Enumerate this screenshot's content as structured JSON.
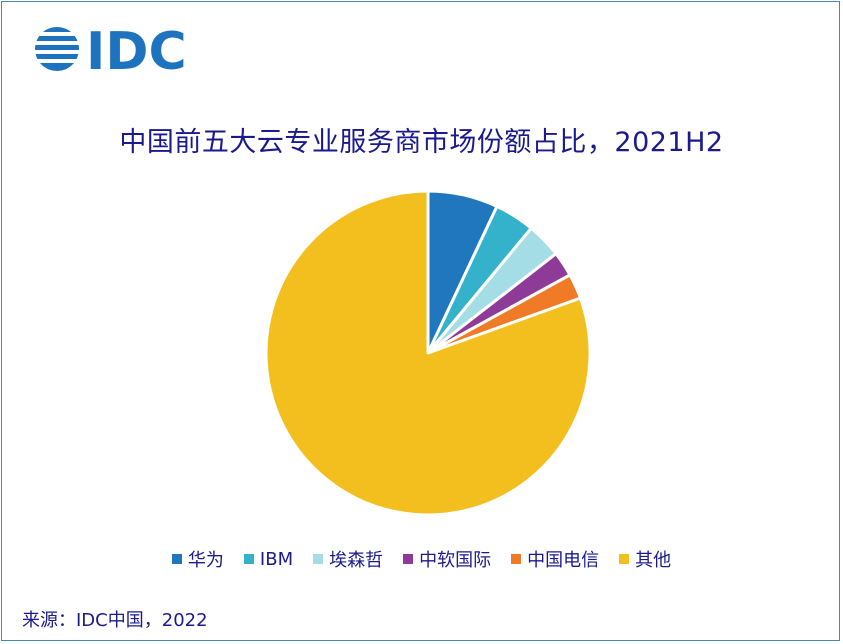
{
  "logo": {
    "text": "IDC",
    "color": "#1e73be"
  },
  "title": "中国前五大云专业服务商市场份额占比，2021H2",
  "source": "来源：IDC中国，2022",
  "chart_data": {
    "type": "pie",
    "start_angle_deg": 0,
    "direction": "clockwise",
    "legend_position": "bottom",
    "slices": [
      {
        "label": "华为",
        "value": 7.0,
        "color": "#2077bd"
      },
      {
        "label": "IBM",
        "value": 4.0,
        "color": "#34b1cb"
      },
      {
        "label": "埃森哲",
        "value": 3.5,
        "color": "#a4dde6"
      },
      {
        "label": "中软国际",
        "value": 2.5,
        "color": "#8e3a97"
      },
      {
        "label": "中国电信",
        "value": 2.5,
        "color": "#ef7b26"
      },
      {
        "label": "其他",
        "value": 80.5,
        "color": "#f2bf1f"
      }
    ]
  }
}
